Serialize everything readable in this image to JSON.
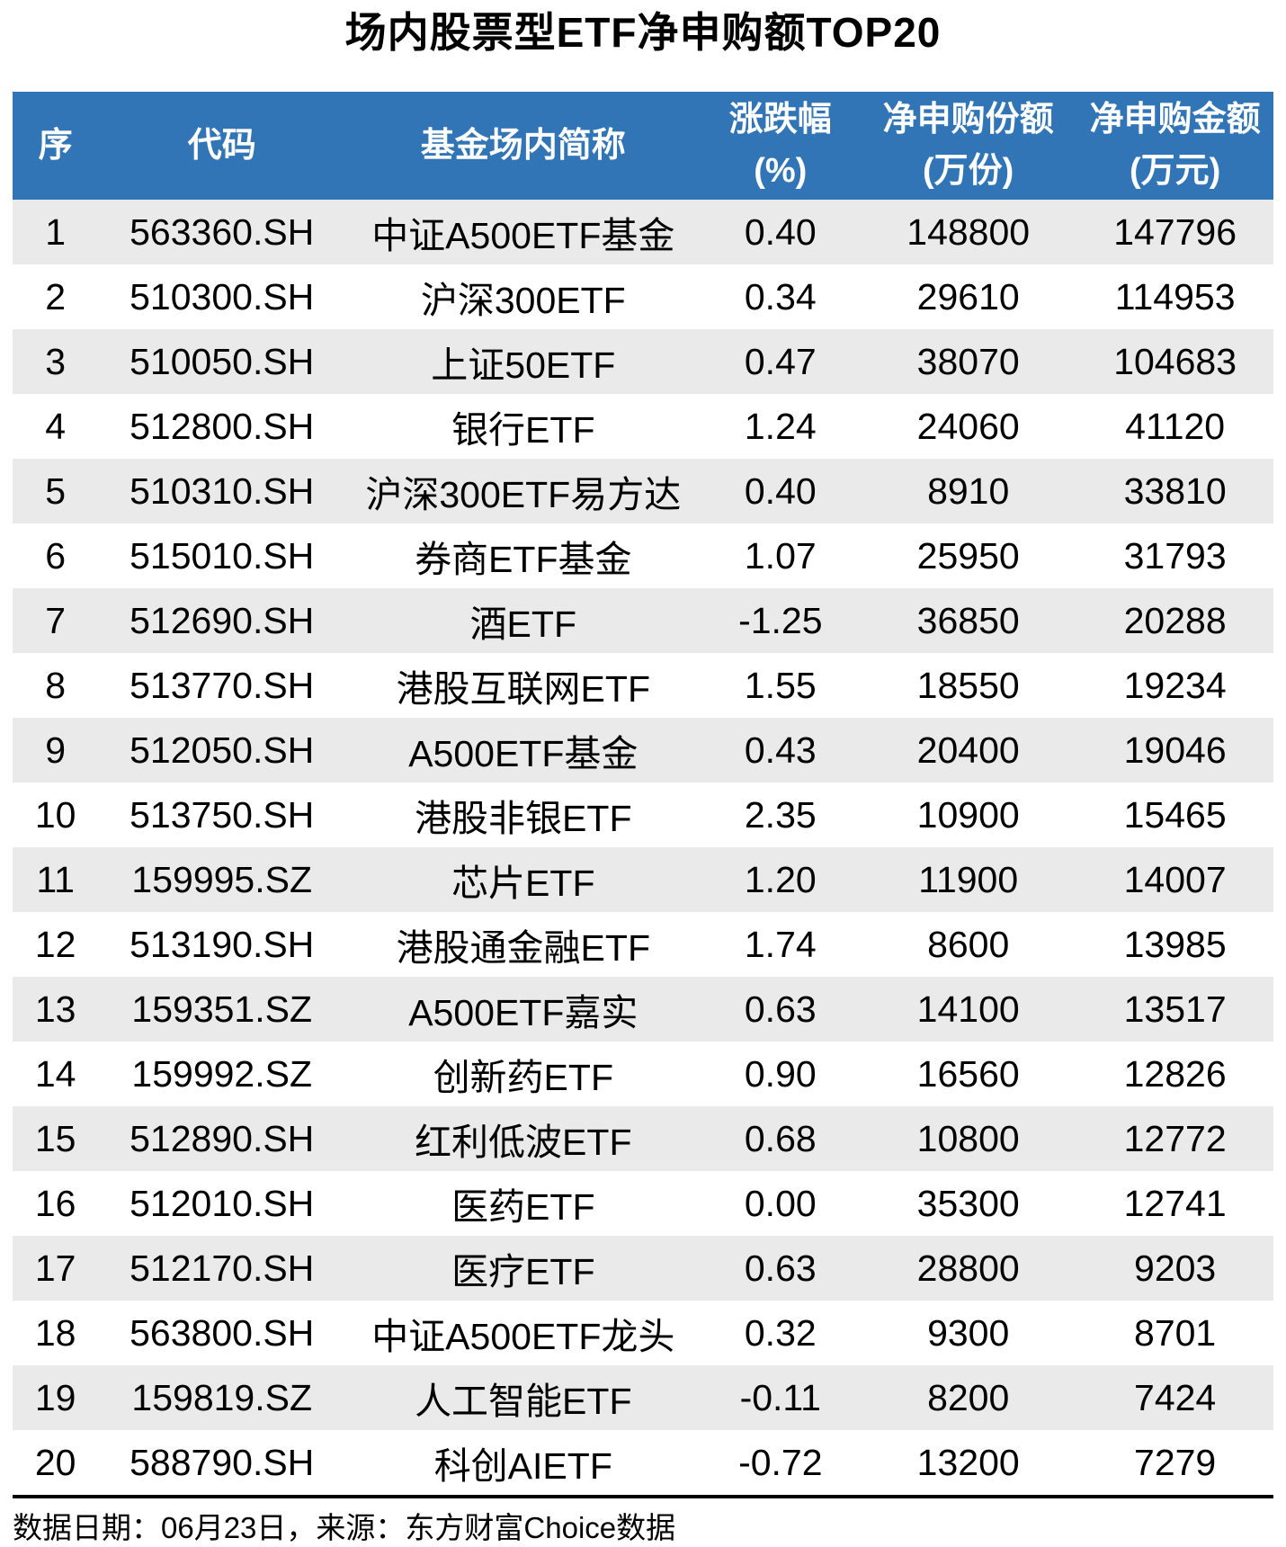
{
  "title": "场内股票型ETF净申购额TOP20",
  "chart_data": {
    "type": "table",
    "title": "场内股票型ETF净申购额TOP20",
    "columns": [
      {
        "key": "no",
        "line1": "序",
        "line2": ""
      },
      {
        "key": "code",
        "line1": "代码",
        "line2": ""
      },
      {
        "key": "name",
        "line1": "基金场内简称",
        "line2": ""
      },
      {
        "key": "change",
        "line1": "涨跌幅",
        "line2": "(%)"
      },
      {
        "key": "shares",
        "line1": "净申购份额",
        "line2": "(万份)"
      },
      {
        "key": "amount",
        "line1": "净申购金额",
        "line2": "(万元)"
      }
    ],
    "rows": [
      {
        "no": "1",
        "code": "563360.SH",
        "name": "中证A500ETF基金",
        "change": "0.40",
        "shares": "148800",
        "amount": "147796"
      },
      {
        "no": "2",
        "code": "510300.SH",
        "name": "沪深300ETF",
        "change": "0.34",
        "shares": "29610",
        "amount": "114953"
      },
      {
        "no": "3",
        "code": "510050.SH",
        "name": "上证50ETF",
        "change": "0.47",
        "shares": "38070",
        "amount": "104683"
      },
      {
        "no": "4",
        "code": "512800.SH",
        "name": "银行ETF",
        "change": "1.24",
        "shares": "24060",
        "amount": "41120"
      },
      {
        "no": "5",
        "code": "510310.SH",
        "name": "沪深300ETF易方达",
        "change": "0.40",
        "shares": "8910",
        "amount": "33810"
      },
      {
        "no": "6",
        "code": "515010.SH",
        "name": "券商ETF基金",
        "change": "1.07",
        "shares": "25950",
        "amount": "31793"
      },
      {
        "no": "7",
        "code": "512690.SH",
        "name": "酒ETF",
        "change": "-1.25",
        "shares": "36850",
        "amount": "20288"
      },
      {
        "no": "8",
        "code": "513770.SH",
        "name": "港股互联网ETF",
        "change": "1.55",
        "shares": "18550",
        "amount": "19234"
      },
      {
        "no": "9",
        "code": "512050.SH",
        "name": "A500ETF基金",
        "change": "0.43",
        "shares": "20400",
        "amount": "19046"
      },
      {
        "no": "10",
        "code": "513750.SH",
        "name": "港股非银ETF",
        "change": "2.35",
        "shares": "10900",
        "amount": "15465"
      },
      {
        "no": "11",
        "code": "159995.SZ",
        "name": "芯片ETF",
        "change": "1.20",
        "shares": "11900",
        "amount": "14007"
      },
      {
        "no": "12",
        "code": "513190.SH",
        "name": "港股通金融ETF",
        "change": "1.74",
        "shares": "8600",
        "amount": "13985"
      },
      {
        "no": "13",
        "code": "159351.SZ",
        "name": "A500ETF嘉实",
        "change": "0.63",
        "shares": "14100",
        "amount": "13517"
      },
      {
        "no": "14",
        "code": "159992.SZ",
        "name": "创新药ETF",
        "change": "0.90",
        "shares": "16560",
        "amount": "12826"
      },
      {
        "no": "15",
        "code": "512890.SH",
        "name": "红利低波ETF",
        "change": "0.68",
        "shares": "10800",
        "amount": "12772"
      },
      {
        "no": "16",
        "code": "512010.SH",
        "name": "医药ETF",
        "change": "0.00",
        "shares": "35300",
        "amount": "12741"
      },
      {
        "no": "17",
        "code": "512170.SH",
        "name": "医疗ETF",
        "change": "0.63",
        "shares": "28800",
        "amount": "9203"
      },
      {
        "no": "18",
        "code": "563800.SH",
        "name": "中证A500ETF龙头",
        "change": "0.32",
        "shares": "9300",
        "amount": "8701"
      },
      {
        "no": "19",
        "code": "159819.SZ",
        "name": "人工智能ETF",
        "change": "-0.11",
        "shares": "8200",
        "amount": "7424"
      },
      {
        "no": "20",
        "code": "588790.SH",
        "name": "科创AIETF",
        "change": "-0.72",
        "shares": "13200",
        "amount": "7279"
      }
    ],
    "note": "数据日期：06月23日，来源：东方财富Choice数据",
    "colors": {
      "header_bg": "#3175B6",
      "header_text": "#FFFFFF",
      "stripe_row_bg": "#EAEAEA",
      "plain_row_bg": "#FFFFFF",
      "divider": "#000000",
      "text": "#000000"
    },
    "layout": {
      "legend_position": "none",
      "grid": "off",
      "zebra_striping": "odd-rows-gray"
    }
  }
}
